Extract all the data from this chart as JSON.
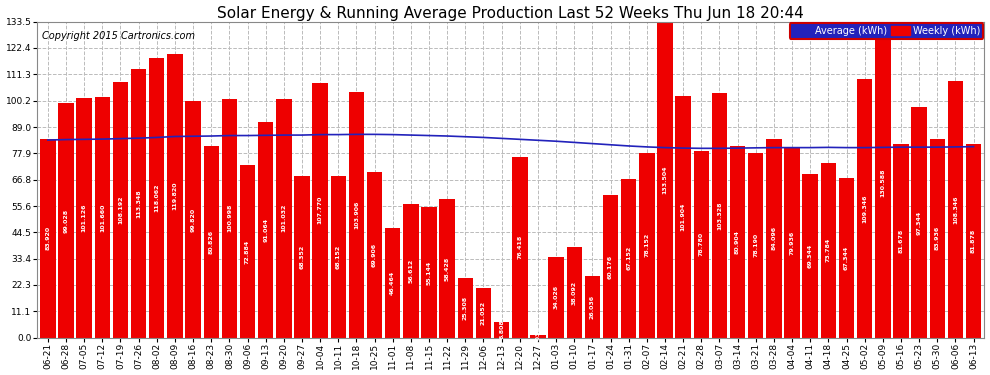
{
  "title": "Solar Energy & Running Average Production Last 52 Weeks Thu Jun 18 20:44",
  "copyright": "Copyright 2015 Cartronics.com",
  "legend_avg": "Average (kWh)",
  "legend_weekly": "Weekly (kWh)",
  "ylim": [
    0,
    133.5
  ],
  "yticks": [
    0.0,
    11.1,
    22.3,
    33.4,
    44.5,
    55.6,
    66.8,
    77.9,
    89.0,
    100.2,
    111.3,
    122.4,
    133.5
  ],
  "bar_color": "#EE0000",
  "avg_line_color": "#2222BB",
  "background_color": "#FFFFFF",
  "plot_bg_color": "#FFFFFF",
  "grid_color": "#BBBBBB",
  "categories": [
    "06-21",
    "06-28",
    "07-05",
    "07-12",
    "07-19",
    "07-26",
    "08-02",
    "08-09",
    "08-16",
    "08-23",
    "08-30",
    "09-06",
    "09-13",
    "09-20",
    "09-27",
    "10-04",
    "10-11",
    "10-18",
    "10-25",
    "11-01",
    "11-08",
    "11-15",
    "11-22",
    "11-29",
    "12-06",
    "12-13",
    "12-20",
    "12-27",
    "01-03",
    "01-10",
    "01-17",
    "01-24",
    "01-31",
    "02-07",
    "02-14",
    "02-21",
    "02-28",
    "03-07",
    "03-14",
    "03-21",
    "03-28",
    "04-04",
    "04-11",
    "04-18",
    "04-25",
    "05-02",
    "05-09",
    "05-16",
    "05-23",
    "05-30",
    "06-06",
    "06-13"
  ],
  "weekly_values": [
    83.92,
    99.028,
    101.126,
    101.66,
    108.192,
    113.348,
    118.062,
    119.82,
    99.82,
    80.826,
    100.998,
    72.884,
    91.064,
    101.032,
    68.352,
    107.77,
    68.152,
    103.906,
    69.906,
    46.464,
    56.612,
    55.144,
    58.428,
    25.308,
    21.052,
    6.808,
    76.418,
    1.03,
    34.026,
    38.092,
    26.036,
    60.176,
    67.152,
    78.152,
    133.504,
    101.904,
    78.78,
    103.328,
    80.904,
    78.19,
    84.096,
    79.936,
    69.344,
    73.784,
    67.344,
    109.346,
    130.588,
    81.678,
    97.344,
    83.936,
    108.346,
    81.878
  ],
  "avg_values": [
    83.5,
    83.7,
    83.8,
    83.9,
    84.1,
    84.3,
    84.6,
    85.0,
    85.1,
    85.2,
    85.4,
    85.4,
    85.5,
    85.6,
    85.6,
    85.8,
    85.8,
    85.9,
    85.9,
    85.8,
    85.6,
    85.4,
    85.2,
    84.9,
    84.6,
    84.2,
    83.8,
    83.4,
    83.0,
    82.5,
    82.0,
    81.5,
    81.0,
    80.6,
    80.3,
    80.1,
    80.0,
    80.0,
    80.1,
    80.2,
    80.3,
    80.3,
    80.3,
    80.4,
    80.3,
    80.3,
    80.4,
    80.5,
    80.5,
    80.5,
    80.6,
    80.7
  ],
  "title_fontsize": 11,
  "copyright_fontsize": 7,
  "tick_fontsize": 6.5,
  "bar_label_fontsize": 4.5
}
